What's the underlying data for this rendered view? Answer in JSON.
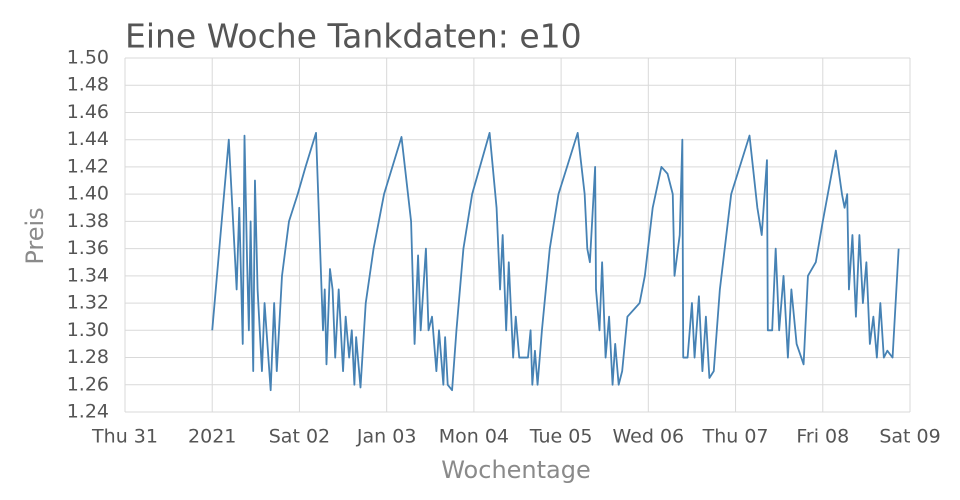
{
  "chart_data": {
    "type": "line",
    "title": "Eine Woche Tankdaten: e10",
    "xlabel": "Wochentage",
    "ylabel": "Preis",
    "color": "#4682b4",
    "grid": true,
    "xlim": [
      0,
      9
    ],
    "xticks": [
      {
        "value": 0,
        "label": "Thu 31"
      },
      {
        "value": 1,
        "label": "2021"
      },
      {
        "value": 2,
        "label": "Sat 02"
      },
      {
        "value": 3,
        "label": "Jan 03"
      },
      {
        "value": 4,
        "label": "Mon 04"
      },
      {
        "value": 5,
        "label": "Tue 05"
      },
      {
        "value": 6,
        "label": "Wed 06"
      },
      {
        "value": 7,
        "label": "Thu 07"
      },
      {
        "value": 8,
        "label": "Fri 08"
      },
      {
        "value": 9,
        "label": "Sat 09"
      }
    ],
    "ylim": [
      1.24,
      1.5
    ],
    "yticks": [
      1.24,
      1.26,
      1.28,
      {
        "value": 1.3,
        "label": "1.30"
      },
      1.32,
      1.34,
      1.36,
      1.38,
      {
        "value": 1.4,
        "label": "1.40"
      },
      1.42,
      1.44,
      1.46,
      1.48,
      {
        "value": 1.5,
        "label": "1.50"
      }
    ],
    "x": [
      1.0,
      1.19,
      1.28,
      1.31,
      1.35,
      1.37,
      1.4,
      1.42,
      1.44,
      1.47,
      1.49,
      1.52,
      1.57,
      1.6,
      1.67,
      1.71,
      1.74,
      1.8,
      1.88,
      1.98,
      2.07,
      2.19,
      2.27,
      2.29,
      2.31,
      2.35,
      2.38,
      2.41,
      2.45,
      2.5,
      2.53,
      2.57,
      2.6,
      2.63,
      2.65,
      2.7,
      2.76,
      2.85,
      2.97,
      3.17,
      3.28,
      3.32,
      3.36,
      3.39,
      3.45,
      3.48,
      3.52,
      3.57,
      3.6,
      3.65,
      3.67,
      3.7,
      3.75,
      3.8,
      3.88,
      3.98,
      4.18,
      4.26,
      4.3,
      4.33,
      4.37,
      4.4,
      4.45,
      4.48,
      4.52,
      4.62,
      4.65,
      4.67,
      4.7,
      4.73,
      4.78,
      4.87,
      4.97,
      5.19,
      5.27,
      5.3,
      5.33,
      5.39,
      5.4,
      5.44,
      5.47,
      5.51,
      5.55,
      5.59,
      5.62,
      5.66,
      5.7,
      5.76,
      5.9,
      5.96,
      6.05,
      6.15,
      6.22,
      6.28,
      6.3,
      6.36,
      6.39,
      6.4,
      6.45,
      6.5,
      6.53,
      6.58,
      6.62,
      6.66,
      6.7,
      6.75,
      6.82,
      6.95,
      7.16,
      7.25,
      7.3,
      7.36,
      7.37,
      7.42,
      7.46,
      7.5,
      7.55,
      7.6,
      7.64,
      7.7,
      7.78,
      7.83,
      7.92,
      8.0,
      8.15,
      8.22,
      8.25,
      8.28,
      8.3,
      8.34,
      8.38,
      8.42,
      8.46,
      8.5,
      8.54,
      8.58,
      8.62,
      8.66,
      8.7,
      8.74,
      8.8,
      8.87
    ],
    "values": [
      1.3,
      1.44,
      1.33,
      1.39,
      1.29,
      1.443,
      1.35,
      1.3,
      1.38,
      1.27,
      1.41,
      1.33,
      1.27,
      1.32,
      1.256,
      1.32,
      1.27,
      1.34,
      1.38,
      1.4,
      1.42,
      1.445,
      1.3,
      1.33,
      1.275,
      1.345,
      1.33,
      1.28,
      1.33,
      1.27,
      1.31,
      1.28,
      1.3,
      1.26,
      1.295,
      1.258,
      1.32,
      1.36,
      1.4,
      1.442,
      1.38,
      1.29,
      1.355,
      1.3,
      1.36,
      1.3,
      1.31,
      1.27,
      1.3,
      1.26,
      1.295,
      1.26,
      1.256,
      1.3,
      1.36,
      1.4,
      1.445,
      1.39,
      1.33,
      1.37,
      1.3,
      1.35,
      1.28,
      1.31,
      1.28,
      1.28,
      1.3,
      1.26,
      1.285,
      1.26,
      1.3,
      1.36,
      1.4,
      1.445,
      1.4,
      1.36,
      1.35,
      1.42,
      1.33,
      1.3,
      1.35,
      1.28,
      1.31,
      1.26,
      1.29,
      1.26,
      1.27,
      1.31,
      1.32,
      1.34,
      1.39,
      1.42,
      1.415,
      1.4,
      1.34,
      1.37,
      1.44,
      1.28,
      1.28,
      1.32,
      1.28,
      1.325,
      1.27,
      1.31,
      1.265,
      1.27,
      1.33,
      1.4,
      1.443,
      1.39,
      1.37,
      1.425,
      1.3,
      1.3,
      1.36,
      1.3,
      1.34,
      1.28,
      1.33,
      1.29,
      1.275,
      1.34,
      1.35,
      1.38,
      1.432,
      1.4,
      1.39,
      1.4,
      1.33,
      1.37,
      1.31,
      1.37,
      1.32,
      1.35,
      1.29,
      1.31,
      1.28,
      1.32,
      1.28,
      1.285,
      1.28,
      1.36
    ]
  }
}
